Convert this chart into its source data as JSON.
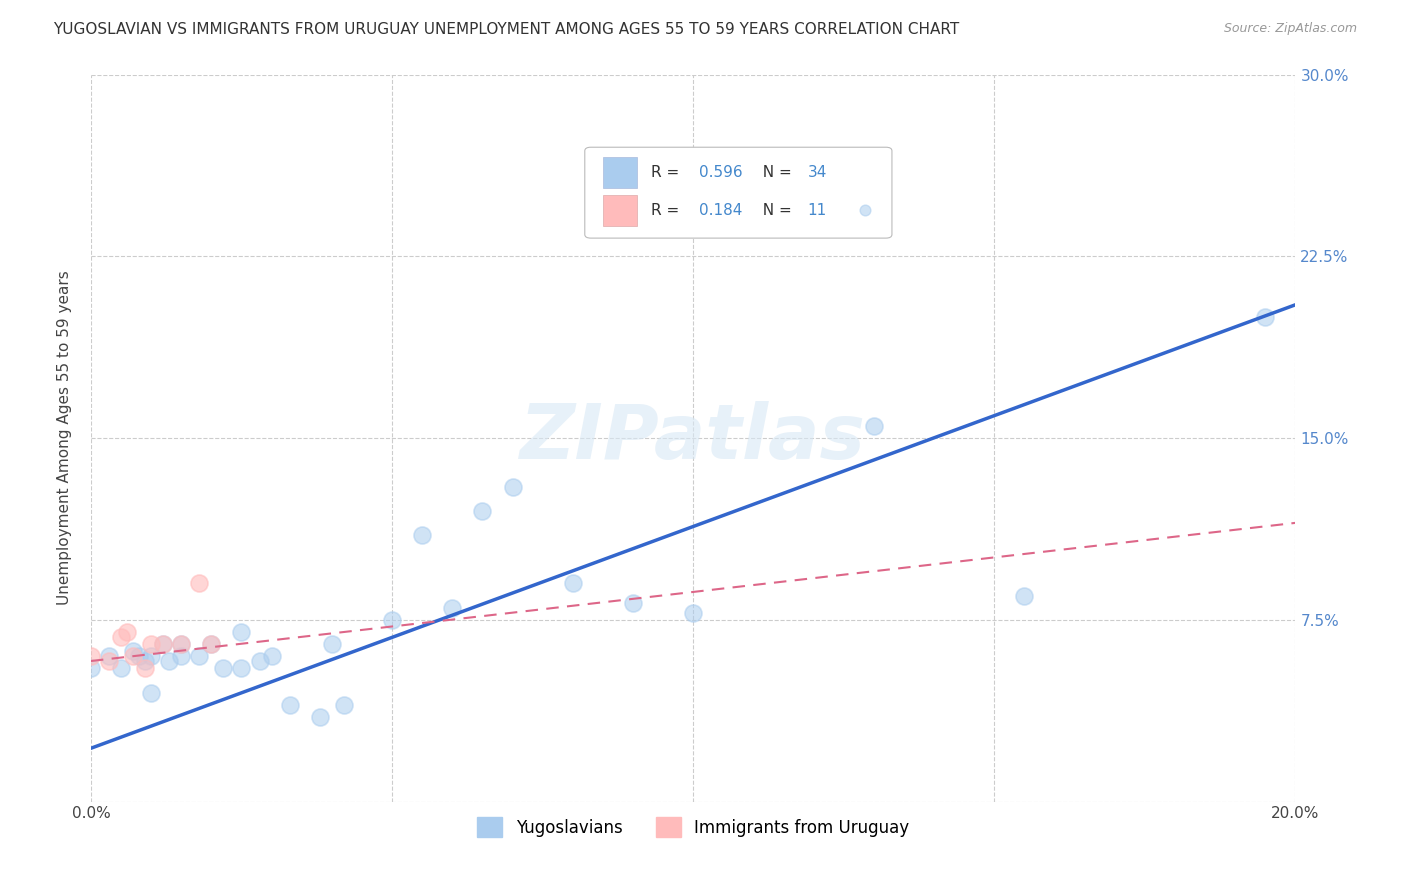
{
  "title": "YUGOSLAVIAN VS IMMIGRANTS FROM URUGUAY UNEMPLOYMENT AMONG AGES 55 TO 59 YEARS CORRELATION CHART",
  "source": "Source: ZipAtlas.com",
  "ylabel": "Unemployment Among Ages 55 to 59 years",
  "xlim": [
    0.0,
    0.2
  ],
  "ylim": [
    0.0,
    0.3
  ],
  "xticks": [
    0.0,
    0.05,
    0.1,
    0.15,
    0.2
  ],
  "yticks": [
    0.0,
    0.075,
    0.15,
    0.225,
    0.3
  ],
  "yticklabels": [
    "",
    "7.5%",
    "15.0%",
    "22.5%",
    "30.0%"
  ],
  "background_color": "#ffffff",
  "grid_color": "#cccccc",
  "yugoslavian_color": "#aaccee",
  "uruguay_color": "#ffbbbb",
  "trend_yugo_color": "#3366cc",
  "trend_uruguay_color": "#dd6688",
  "R_yugo": 0.596,
  "N_yugo": 34,
  "R_uruguay": 0.184,
  "N_uruguay": 11,
  "yugo_x": [
    0.0,
    0.003,
    0.005,
    0.007,
    0.008,
    0.009,
    0.01,
    0.01,
    0.012,
    0.013,
    0.015,
    0.015,
    0.018,
    0.02,
    0.022,
    0.025,
    0.025,
    0.028,
    0.03,
    0.033,
    0.038,
    0.04,
    0.042,
    0.05,
    0.055,
    0.06,
    0.065,
    0.07,
    0.08,
    0.09,
    0.1,
    0.13,
    0.155,
    0.195
  ],
  "yugo_y": [
    0.055,
    0.06,
    0.055,
    0.062,
    0.06,
    0.058,
    0.06,
    0.045,
    0.065,
    0.058,
    0.065,
    0.06,
    0.06,
    0.065,
    0.055,
    0.07,
    0.055,
    0.058,
    0.06,
    0.04,
    0.035,
    0.065,
    0.04,
    0.075,
    0.11,
    0.08,
    0.12,
    0.13,
    0.09,
    0.082,
    0.078,
    0.155,
    0.085,
    0.2
  ],
  "uruguay_x": [
    0.0,
    0.003,
    0.005,
    0.006,
    0.007,
    0.009,
    0.01,
    0.012,
    0.015,
    0.018,
    0.02
  ],
  "uruguay_y": [
    0.06,
    0.058,
    0.068,
    0.07,
    0.06,
    0.055,
    0.065,
    0.065,
    0.065,
    0.09,
    0.065
  ],
  "yugo_trend_x0": 0.0,
  "yugo_trend_y0": 0.022,
  "yugo_trend_x1": 0.2,
  "yugo_trend_y1": 0.205,
  "uru_trend_x0": 0.0,
  "uru_trend_y0": 0.058,
  "uru_trend_x1": 0.2,
  "uru_trend_y1": 0.115,
  "watermark": "ZIPatlas",
  "title_fontsize": 11,
  "axis_label_fontsize": 11,
  "tick_fontsize": 11,
  "legend_fontsize": 12
}
